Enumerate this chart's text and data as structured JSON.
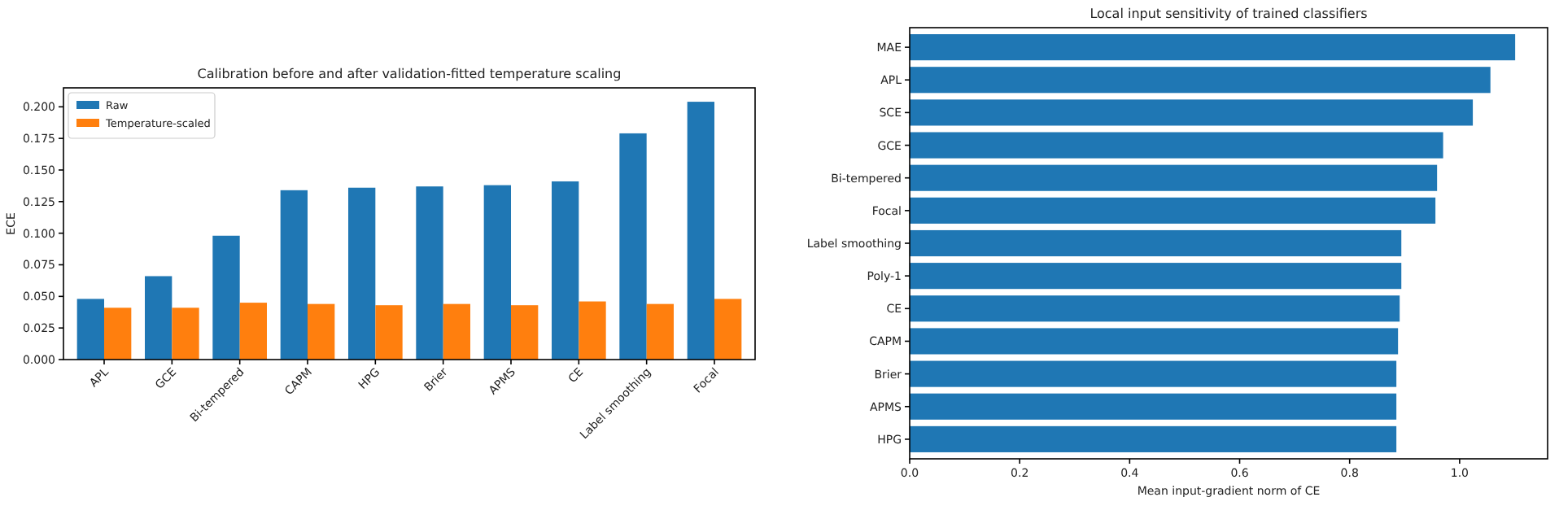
{
  "chart_data": [
    {
      "type": "bar",
      "title": "Calibration before and after validation-fitted temperature scaling",
      "ylabel": "ECE",
      "categories": [
        "APL",
        "GCE",
        "Bi-tempered",
        "CAPM",
        "HPG",
        "Brier",
        "APMS",
        "CE",
        "Label smoothing",
        "Focal"
      ],
      "series": [
        {
          "name": "Raw",
          "color": "#1f77b4",
          "values": [
            0.048,
            0.066,
            0.098,
            0.134,
            0.136,
            0.137,
            0.138,
            0.141,
            0.179,
            0.204
          ]
        },
        {
          "name": "Temperature-scaled",
          "color": "#ff7f0e",
          "values": [
            0.041,
            0.041,
            0.045,
            0.044,
            0.043,
            0.044,
            0.043,
            0.046,
            0.044,
            0.048
          ]
        }
      ],
      "ylim": [
        0,
        0.215
      ],
      "yticks": [
        {
          "value": 0,
          "label": "0.000"
        },
        {
          "value": 0.025,
          "label": "0.025"
        },
        {
          "value": 0.05,
          "label": "0.050"
        },
        {
          "value": 0.075,
          "label": "0.075"
        },
        {
          "value": 0.1,
          "label": "0.100"
        },
        {
          "value": 0.125,
          "label": "0.125"
        },
        {
          "value": 0.15,
          "label": "0.150"
        },
        {
          "value": 0.175,
          "label": "0.175"
        },
        {
          "value": 0.2,
          "label": "0.200"
        }
      ],
      "legend": "top left"
    },
    {
      "type": "bar",
      "orientation": "horizontal",
      "title": "Local input sensitivity of trained classifiers",
      "xlabel": "Mean input-gradient norm of CE",
      "categories": [
        "MAE",
        "APL",
        "SCE",
        "GCE",
        "Bi-tempered",
        "Focal",
        "Label smoothing",
        "Poly-1",
        "CE",
        "CAPM",
        "Brier",
        "APMS",
        "HPG"
      ],
      "values": [
        1.101,
        1.056,
        1.024,
        0.97,
        0.959,
        0.956,
        0.894,
        0.894,
        0.891,
        0.888,
        0.885,
        0.885,
        0.885
      ],
      "color": "#1f77b4",
      "xlim": [
        0,
        1.16
      ],
      "xticks": [
        {
          "value": 0,
          "label": "0.0"
        },
        {
          "value": 0.2,
          "label": "0.2"
        },
        {
          "value": 0.4,
          "label": "0.4"
        },
        {
          "value": 0.6,
          "label": "0.6"
        },
        {
          "value": 0.8,
          "label": "0.8"
        },
        {
          "value": 1,
          "label": "1.0"
        }
      ]
    }
  ]
}
